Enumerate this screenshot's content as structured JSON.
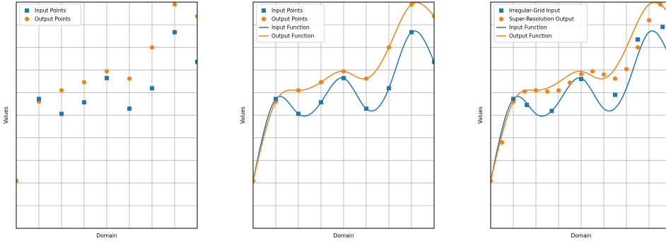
{
  "colors": {
    "input": "#1f77b4",
    "output": "#ff7f0e"
  },
  "chart_data": [
    {
      "type": "scatter",
      "xlabel": "Domain",
      "ylabel": "Values",
      "xlim": [
        0,
        8
      ],
      "ylim": [
        -2.0,
        8.0
      ],
      "grid": true,
      "legend": "top-left",
      "series": [
        {
          "name": "Input Points",
          "kind": "points",
          "marker": "square",
          "color": "input",
          "x": [
            1,
            2,
            3,
            4,
            5,
            6,
            7,
            8
          ],
          "y": [
            3.72,
            3.06,
            3.57,
            4.64,
            3.29,
            4.19,
            6.67,
            5.36
          ]
        },
        {
          "name": "Output Points",
          "kind": "points",
          "marker": "circle",
          "color": "output",
          "x": [
            0,
            1,
            2,
            3,
            4,
            5,
            6,
            7,
            8
          ],
          "y": [
            0.1,
            3.6,
            4.1,
            4.46,
            4.94,
            4.62,
            6.0,
            7.9,
            7.38
          ]
        }
      ]
    },
    {
      "type": "line",
      "xlabel": "Domain",
      "ylabel": "Values",
      "xlim": [
        0,
        8
      ],
      "ylim": [
        -2.0,
        8.0
      ],
      "grid": true,
      "legend": "top-left",
      "series": [
        {
          "name": "Input Points",
          "kind": "points",
          "marker": "square",
          "color": "input",
          "x": [
            1,
            2,
            3,
            4,
            5,
            6,
            7,
            8
          ],
          "y": [
            3.72,
            3.06,
            3.57,
            4.64,
            3.29,
            4.19,
            6.67,
            5.36
          ]
        },
        {
          "name": "Output Points",
          "kind": "points",
          "marker": "circle",
          "color": "output",
          "x": [
            0,
            1,
            2,
            3,
            4,
            5,
            6,
            7,
            8
          ],
          "y": [
            0.1,
            3.6,
            4.1,
            4.46,
            4.94,
            4.62,
            6.0,
            7.9,
            7.38
          ]
        },
        {
          "name": "Input Function",
          "kind": "curve",
          "color": "input",
          "x": [
            0,
            1,
            2,
            3,
            4,
            5,
            6,
            7,
            8
          ],
          "y": [
            0.1,
            3.72,
            3.06,
            3.57,
            4.64,
            3.29,
            4.19,
            6.67,
            5.36
          ]
        },
        {
          "name": "Output Function",
          "kind": "curve",
          "color": "output",
          "x": [
            0,
            1,
            2,
            3,
            4,
            5,
            6,
            7,
            8
          ],
          "y": [
            0.1,
            3.6,
            4.1,
            4.46,
            4.94,
            4.62,
            6.0,
            7.9,
            7.38
          ]
        }
      ]
    },
    {
      "type": "line",
      "xlabel": "Domain",
      "ylabel": "Values",
      "xlim": [
        0,
        8
      ],
      "ylim": [
        -2.0,
        8.0
      ],
      "grid": true,
      "legend": "top-left",
      "series": [
        {
          "name": "Irregular-Grid Input",
          "kind": "points",
          "marker": "square",
          "color": "input",
          "x": [
            1,
            1.6,
            2.7,
            4,
            5.5,
            6.5,
            7.6
          ],
          "y": [
            3.72,
            3.45,
            3.19,
            4.6,
            3.9,
            6.35,
            6.9
          ]
        },
        {
          "name": "Super-Resolution Output",
          "kind": "points",
          "marker": "circle",
          "color": "output",
          "x": [
            0,
            0.5,
            1,
            1.5,
            2,
            2.5,
            3,
            3.5,
            4,
            4.5,
            5,
            5.5,
            6,
            6.5,
            7,
            7.5
          ],
          "y": [
            0.1,
            1.8,
            3.6,
            4.05,
            4.1,
            4.05,
            4.1,
            4.44,
            4.82,
            4.94,
            4.8,
            4.62,
            5.04,
            6.0,
            7.2,
            7.9
          ]
        },
        {
          "name": "Input Function",
          "kind": "curve",
          "color": "input",
          "x": [
            0,
            1,
            2,
            3,
            4,
            5,
            6,
            7,
            8
          ],
          "y": [
            0.1,
            3.72,
            3.06,
            3.57,
            4.64,
            3.29,
            4.19,
            6.67,
            5.36
          ]
        },
        {
          "name": "Output Function",
          "kind": "curve",
          "color": "output",
          "x": [
            0,
            1,
            2,
            3,
            4,
            5,
            6,
            7,
            8
          ],
          "y": [
            0.1,
            3.6,
            4.1,
            4.46,
            4.94,
            4.62,
            6.0,
            7.9,
            7.38
          ]
        }
      ]
    }
  ]
}
